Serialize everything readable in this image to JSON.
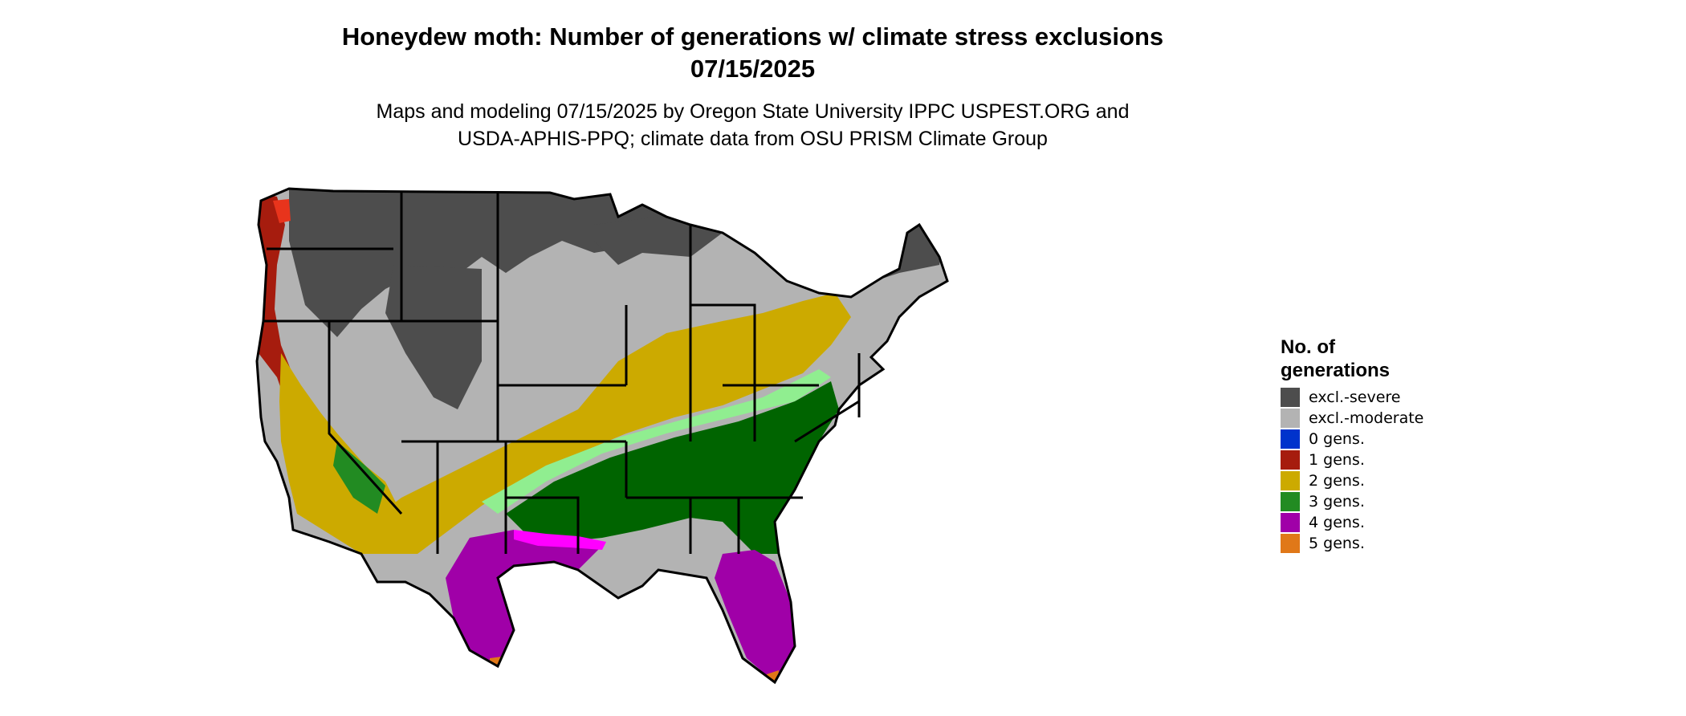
{
  "title": {
    "line1": "Honeydew moth: Number of generations w/ climate stress exclusions",
    "line2": "07/15/2025"
  },
  "subtitle": {
    "line1": "Maps and modeling 07/15/2025 by Oregon State University IPPC USPEST.ORG and",
    "line2": "USDA-APHIS-PPQ; climate data from OSU PRISM Climate Group"
  },
  "legend": {
    "title_line1": "No. of",
    "title_line2": "generations",
    "items": [
      {
        "label": "excl.-severe",
        "color": "#4d4d4d"
      },
      {
        "label": "excl.-moderate",
        "color": "#b3b3b3"
      },
      {
        "label": "0 gens.",
        "color": "#0033cc"
      },
      {
        "label": "1 gens.",
        "color": "#a61c0e"
      },
      {
        "label": "2 gens.",
        "color": "#ccaa00"
      },
      {
        "label": "3 gens.",
        "color": "#228b22"
      },
      {
        "label": "4 gens.",
        "color": "#a000a8"
      },
      {
        "label": "5 gens.",
        "color": "#e07818"
      }
    ]
  },
  "map": {
    "region": "contiguous-united-states",
    "extra_colors": {
      "dark_green": "#006400",
      "light_green": "#90ee90",
      "magenta": "#ff00ff",
      "red_orange": "#e8341c"
    }
  }
}
